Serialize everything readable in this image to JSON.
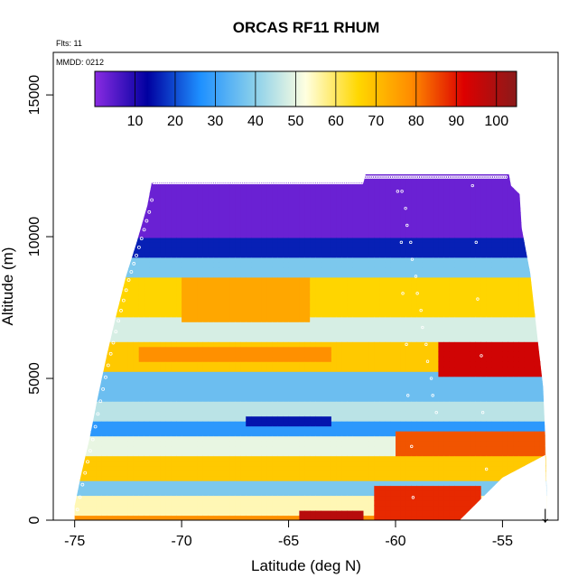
{
  "chart_data": {
    "type": "heatmap",
    "title": "ORCAS RF11 RHUM",
    "subtitle_flights": "Flts: 11",
    "subtitle_date": "MMDD: 0212",
    "xlabel": "Latitude (deg N)",
    "ylabel": "Altitude (m)",
    "xlim": [
      -76,
      -52.4
    ],
    "ylim": [
      0,
      16500
    ],
    "x_ticks": [
      -75,
      -70,
      -65,
      -60,
      -55
    ],
    "x_tick_labels": [
      "-75",
      "-70",
      "-65",
      "-60",
      "-55"
    ],
    "y_ticks": [
      0,
      5000,
      10000,
      15000
    ],
    "y_tick_labels": [
      "0",
      "5000",
      "10000",
      "15000"
    ],
    "colorbar": {
      "range": [
        0,
        105
      ],
      "ticks": [
        10,
        20,
        30,
        40,
        50,
        60,
        70,
        80,
        90,
        100
      ],
      "tick_labels": [
        "10",
        "20",
        "30",
        "40",
        "50",
        "60",
        "70",
        "80",
        "90",
        "100"
      ],
      "colors": [
        "#8a2be2",
        "#0000a0",
        "#1e90ff",
        "#87ceeb",
        "#ffffe0",
        "#ffd700",
        "#ff8c00",
        "#dd0000",
        "#8b1a1a"
      ]
    },
    "coverage_top_altitude": [
      [
        -75.0,
        500
      ],
      [
        -74.7,
        1600
      ],
      [
        -74.3,
        2900
      ],
      [
        -73.9,
        4400
      ],
      [
        -73.5,
        5800
      ],
      [
        -73.1,
        7100
      ],
      [
        -72.6,
        8600
      ],
      [
        -72.1,
        9800
      ],
      [
        -71.6,
        11100
      ],
      [
        -71.4,
        11900
      ],
      [
        -61.5,
        11900
      ],
      [
        -61.4,
        12200
      ],
      [
        -54.7,
        12200
      ],
      [
        -54.6,
        11800
      ],
      [
        -54.2,
        11500
      ],
      [
        -54.1,
        10300
      ],
      [
        -53.7,
        8700
      ],
      [
        -53.3,
        6000
      ],
      [
        -53.1,
        4700
      ],
      [
        -53.0,
        2900
      ],
      [
        -52.9,
        0
      ]
    ],
    "coverage_bottom_altitude": [
      [
        -75.0,
        0
      ],
      [
        -57.0,
        0
      ],
      [
        -55.0,
        1500
      ],
      [
        -53.0,
        2300
      ]
    ],
    "rhum_layers": [
      {
        "altitude_range": [
          0,
          200
        ],
        "rhum": 78
      },
      {
        "altitude_range": [
          200,
          800
        ],
        "rhum": 55
      },
      {
        "altitude_range": [
          800,
          1400
        ],
        "rhum": 38
      },
      {
        "altitude_range": [
          1400,
          2200
        ],
        "rhum": 68
      },
      {
        "altitude_range": [
          2200,
          2900
        ],
        "rhum": 50
      },
      {
        "altitude_range": [
          2900,
          3500
        ],
        "rhum": 28
      },
      {
        "altitude_range": [
          3500,
          4200
        ],
        "rhum": 45
      },
      {
        "altitude_range": [
          4200,
          5200
        ],
        "rhum": 36
      },
      {
        "altitude_range": [
          5200,
          6300
        ],
        "rhum": 68
      },
      {
        "altitude_range": [
          6300,
          7100
        ],
        "rhum": 48
      },
      {
        "altitude_range": [
          7100,
          8500
        ],
        "rhum": 66
      },
      {
        "altitude_range": [
          8500,
          9200
        ],
        "rhum": 38
      },
      {
        "altitude_range": [
          9200,
          10000
        ],
        "rhum": 16
      },
      {
        "altitude_range": [
          10000,
          12200
        ],
        "rhum": 3
      }
    ],
    "rhum_features": [
      {
        "lat_range": [
          -58,
          -53
        ],
        "altitude_range": [
          5000,
          6300
        ],
        "rhum": 94
      },
      {
        "lat_range": [
          -60,
          -53
        ],
        "altitude_range": [
          2200,
          3200
        ],
        "rhum": 84
      },
      {
        "lat_range": [
          -61,
          -56
        ],
        "altitude_range": [
          0,
          1300
        ],
        "rhum": 88
      },
      {
        "lat_range": [
          -64.5,
          -61.5
        ],
        "altitude_range": [
          0,
          400
        ],
        "rhum": 98
      },
      {
        "lat_range": [
          -70,
          -64
        ],
        "altitude_range": [
          7000,
          8500
        ],
        "rhum": 74
      },
      {
        "lat_range": [
          -67,
          -63
        ],
        "altitude_range": [
          3300,
          3700
        ],
        "rhum": 15
      },
      {
        "lat_range": [
          -72,
          -63
        ],
        "altitude_range": [
          5600,
          6200
        ],
        "rhum": 78
      }
    ]
  },
  "annotations": {
    "arrow_latitude": -53,
    "arrow_glyph": "↓"
  }
}
